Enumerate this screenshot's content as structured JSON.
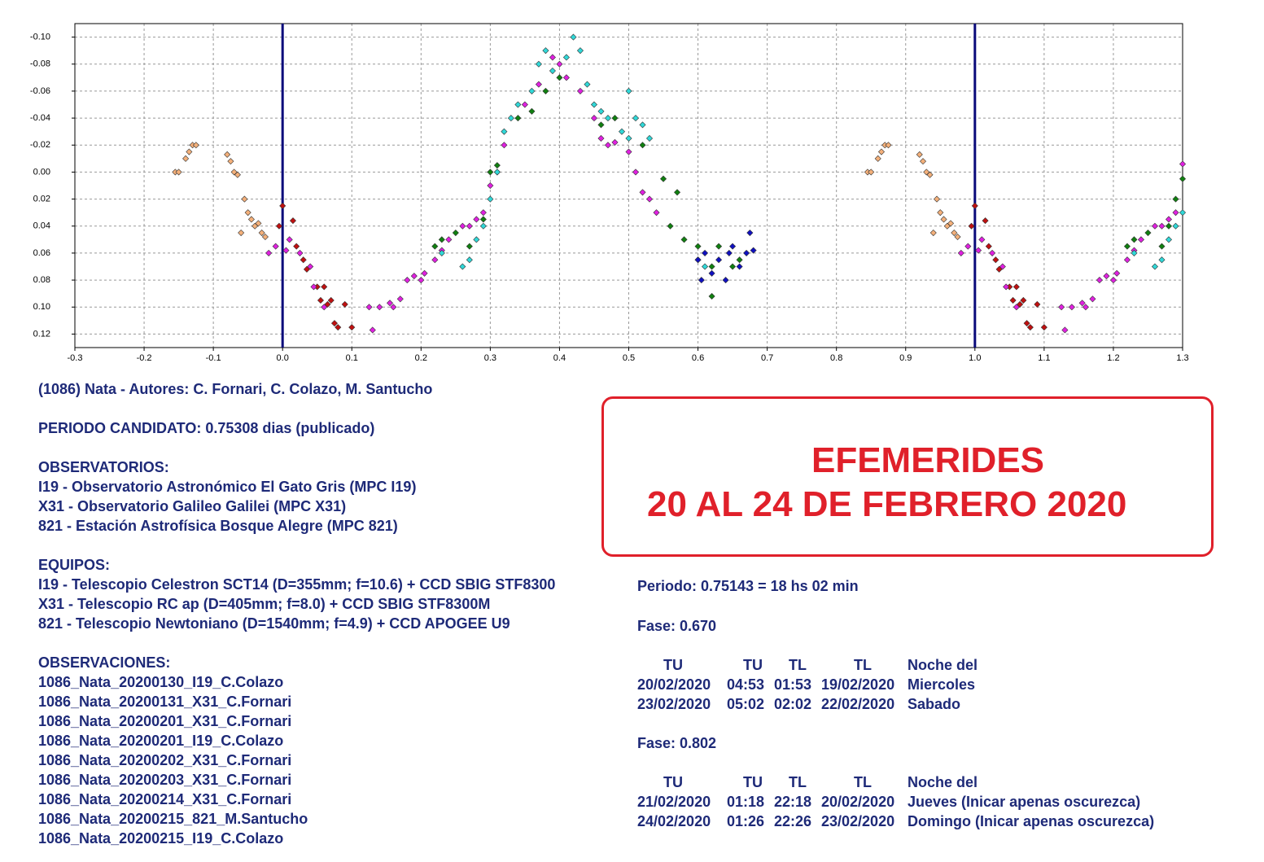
{
  "chart_data": {
    "type": "scatter",
    "xlim": [
      -0.3,
      1.3
    ],
    "ylim": [
      0.13,
      -0.11
    ],
    "xticks": [
      -0.3,
      -0.2,
      -0.1,
      {
        "value": 0,
        "label": "0.0"
      },
      0.1,
      0.2,
      0.3,
      0.4,
      0.5,
      0.6,
      0.7,
      0.8,
      0.9,
      {
        "value": 1,
        "label": "1.0"
      },
      1.1,
      1.2,
      1.3
    ],
    "yticks": [
      {
        "value": -0.1,
        "label": "-0.10"
      },
      {
        "value": -0.08,
        "label": "-0.08"
      },
      {
        "value": -0.06,
        "label": "-0.06"
      },
      {
        "value": -0.04,
        "label": "-0.04"
      },
      {
        "value": -0.02,
        "label": "-0.02"
      },
      {
        "value": 0,
        "label": "0.00"
      },
      {
        "value": 0.02,
        "label": "0.02"
      },
      {
        "value": 0.04,
        "label": "0.04"
      },
      {
        "value": 0.06,
        "label": "0.06"
      },
      {
        "value": 0.08,
        "label": "0.08"
      },
      {
        "value": 0.1,
        "label": "0.10"
      },
      {
        "value": 0.12,
        "label": "0.12"
      }
    ],
    "grid": true,
    "vlines": [
      0,
      1
    ],
    "vline_color": "#0a0a7a",
    "series": [
      {
        "color": "#f4b07a",
        "x": [
          -0.155,
          -0.15,
          -0.14,
          -0.135,
          -0.13,
          -0.125,
          -0.08,
          -0.075,
          -0.07,
          -0.065,
          -0.055,
          -0.05,
          -0.045,
          -0.04,
          -0.035,
          -0.03,
          -0.025,
          -0.06,
          0.845,
          0.85,
          0.86,
          0.865,
          0.87,
          0.875,
          0.92,
          0.925,
          0.93,
          0.935,
          0.945,
          0.95,
          0.955,
          0.96,
          0.965,
          0.97,
          0.975,
          0.94
        ],
        "values": [
          0.0,
          0.0,
          -0.01,
          -0.015,
          -0.02,
          -0.02,
          -0.013,
          -0.008,
          0.0,
          0.002,
          0.02,
          0.03,
          0.035,
          0.04,
          0.038,
          0.045,
          0.048,
          0.045,
          0.0,
          0.0,
          -0.01,
          -0.015,
          -0.02,
          -0.02,
          -0.013,
          -0.008,
          0.0,
          0.002,
          0.02,
          0.03,
          0.035,
          0.04,
          0.038,
          0.045,
          0.048,
          0.045
        ]
      },
      {
        "color": "#c01010",
        "x": [
          0.0,
          0.015,
          0.02,
          0.03,
          0.035,
          0.05,
          0.06,
          0.055,
          0.065,
          0.07,
          0.075,
          0.08,
          0.09,
          0.1,
          -0.005,
          1.0,
          1.015,
          1.02,
          1.03,
          1.035,
          1.05,
          1.06,
          1.055,
          1.065,
          1.07,
          1.075,
          1.08,
          1.09,
          1.1,
          0.995
        ],
        "values": [
          0.025,
          0.036,
          0.055,
          0.065,
          0.072,
          0.085,
          0.085,
          0.095,
          0.098,
          0.095,
          0.112,
          0.115,
          0.098,
          0.115,
          0.04,
          0.025,
          0.036,
          0.055,
          0.065,
          0.072,
          0.085,
          0.085,
          0.095,
          0.098,
          0.095,
          0.112,
          0.115,
          0.098,
          0.115,
          0.04
        ]
      },
      {
        "color": "#e020e0",
        "x": [
          -0.02,
          -0.01,
          0.005,
          0.01,
          0.025,
          0.04,
          0.045,
          0.06,
          0.13,
          0.125,
          0.14,
          0.155,
          0.16,
          0.17,
          0.18,
          0.19,
          0.2,
          0.205,
          0.22,
          0.23,
          0.24,
          0.26,
          0.27,
          0.28,
          0.29,
          0.3,
          0.31,
          0.32,
          0.35,
          0.37,
          0.39,
          0.4,
          0.41,
          0.43,
          0.45,
          0.46,
          0.47,
          0.48,
          0.5,
          0.51,
          0.52,
          0.53,
          0.54,
          0.98,
          0.99,
          1.005,
          1.01,
          1.025,
          1.04,
          1.045,
          1.06,
          1.13,
          1.125,
          1.14,
          1.155,
          1.16,
          1.17,
          1.18,
          1.19,
          1.2,
          1.205,
          1.22,
          1.23,
          1.24,
          1.26,
          1.27,
          1.28,
          1.29,
          1.3
        ],
        "values": [
          0.06,
          0.055,
          0.058,
          0.05,
          0.06,
          0.07,
          0.085,
          0.1,
          0.117,
          0.1,
          0.1,
          0.097,
          0.1,
          0.094,
          0.08,
          0.077,
          0.08,
          0.075,
          0.065,
          0.058,
          0.05,
          0.04,
          0.04,
          0.035,
          0.03,
          0.01,
          0.0,
          -0.02,
          -0.05,
          -0.065,
          -0.085,
          -0.08,
          -0.07,
          -0.06,
          -0.04,
          -0.025,
          -0.02,
          -0.022,
          -0.015,
          0.0,
          0.015,
          0.02,
          0.03,
          0.06,
          0.055,
          0.058,
          0.05,
          0.06,
          0.07,
          0.085,
          0.1,
          0.117,
          0.1,
          0.1,
          0.097,
          0.1,
          0.094,
          0.08,
          0.077,
          0.08,
          0.075,
          0.065,
          0.058,
          0.05,
          0.04,
          0.04,
          0.035,
          0.03,
          -0.006
        ]
      },
      {
        "color": "#108010",
        "x": [
          0.22,
          0.23,
          0.25,
          0.27,
          0.29,
          0.3,
          0.31,
          0.34,
          0.36,
          0.38,
          0.4,
          0.46,
          0.48,
          0.52,
          0.55,
          0.57,
          0.56,
          0.58,
          0.6,
          0.62,
          0.63,
          0.65,
          0.62,
          0.66,
          1.22,
          1.23,
          1.25,
          1.27,
          1.28,
          1.29,
          1.3
        ],
        "values": [
          0.055,
          0.05,
          0.045,
          0.055,
          0.035,
          0.0,
          -0.005,
          -0.04,
          -0.045,
          -0.06,
          -0.07,
          -0.035,
          -0.04,
          -0.02,
          0.005,
          0.015,
          0.04,
          0.05,
          0.055,
          0.07,
          0.055,
          0.07,
          0.092,
          0.065,
          0.055,
          0.05,
          0.045,
          0.055,
          0.04,
          0.02,
          0.005
        ]
      },
      {
        "color": "#30d8d8",
        "x": [
          0.23,
          0.26,
          0.27,
          0.28,
          0.29,
          0.3,
          0.31,
          0.32,
          0.33,
          0.34,
          0.36,
          0.37,
          0.38,
          0.39,
          0.41,
          0.42,
          0.43,
          0.44,
          0.45,
          0.46,
          0.47,
          0.49,
          0.5,
          0.51,
          0.52,
          0.53,
          0.5,
          0.6,
          0.61,
          1.23,
          1.26,
          1.27,
          1.28,
          1.29,
          1.3
        ],
        "values": [
          0.06,
          0.07,
          0.065,
          0.05,
          0.04,
          0.02,
          0.0,
          -0.03,
          -0.04,
          -0.05,
          -0.06,
          -0.08,
          -0.09,
          -0.075,
          -0.085,
          -0.1,
          -0.09,
          -0.065,
          -0.05,
          -0.045,
          -0.04,
          -0.03,
          -0.025,
          -0.04,
          -0.035,
          -0.025,
          -0.06,
          0.065,
          0.07,
          0.06,
          0.07,
          0.065,
          0.05,
          0.04,
          0.03
        ]
      },
      {
        "color": "#1010c0",
        "x": [
          0.6,
          0.605,
          0.61,
          0.62,
          0.63,
          0.64,
          0.645,
          0.65,
          0.66,
          0.67,
          0.68,
          0.675
        ],
        "values": [
          0.065,
          0.08,
          0.06,
          0.075,
          0.065,
          0.08,
          0.06,
          0.055,
          0.07,
          0.06,
          0.058,
          0.045
        ]
      }
    ]
  },
  "info": {
    "title": "(1086) Nata - Autores: C. Fornari, C. Colazo, M. Santucho",
    "period": "PERIODO CANDIDATO: 0.75308 dias (publicado)",
    "observatories_heading": "OBSERVATORIOS:",
    "observatories": [
      "I19 - Observatorio Astronómico El Gato Gris (MPC I19)",
      "X31 - Observatorio Galileo Galilei (MPC X31)",
      "821 - Estación Astrofísica Bosque Alegre (MPC 821)"
    ],
    "equipment_heading": "EQUIPOS:",
    "equipment": [
      "I19 - Telescopio Celestron SCT14 (D=355mm; f=10.6) + CCD SBIG STF8300",
      "X31 - Telescopio RC ap (D=405mm; f=8.0) + CCD SBIG STF8300M",
      "821 - Telescopio Newtoniano (D=1540mm; f=4.9) + CCD APOGEE U9"
    ],
    "observations_heading": "OBSERVACIONES:",
    "observations": [
      "1086_Nata_20200130_I19_C.Colazo",
      "1086_Nata_20200131_X31_C.Fornari",
      "1086_Nata_20200201_X31_C.Fornari",
      "1086_Nata_20200201_I19_C.Colazo",
      "1086_Nata_20200202_X31_C.Fornari",
      "1086_Nata_20200203_X31_C.Fornari",
      "1086_Nata_20200214_X31_C.Fornari",
      "1086_Nata_20200215_821_M.Santucho",
      "1086_Nata_20200215_I19_C.Colazo"
    ]
  },
  "ephemeris": {
    "box_title": "EFEMERIDES",
    "box_subtitle": "20 AL 24 DE FEBRERO 2020",
    "period": "Periodo: 0.75143 = 18 hs 02 min",
    "blocks": [
      {
        "phase": "Fase: 0.670",
        "columns": [
          "TU",
          "TU",
          "TL",
          "TL",
          "Noche del"
        ],
        "rows": [
          [
            "20/02/2020",
            "04:53",
            "01:53",
            "19/02/2020",
            "Miercoles"
          ],
          [
            "23/02/2020",
            "05:02",
            "02:02",
            "22/02/2020",
            "Sabado"
          ]
        ]
      },
      {
        "phase": "Fase: 0.802",
        "columns": [
          "TU",
          "TU",
          "TL",
          "TL",
          "Noche del"
        ],
        "rows": [
          [
            "21/02/2020",
            "01:18",
            "22:18",
            "20/02/2020",
            "Jueves (Inicar apenas oscurezca)"
          ],
          [
            "24/02/2020",
            "01:26",
            "22:26",
            "23/02/2020",
            "Domingo (Inicar apenas oscurezca)"
          ]
        ]
      }
    ]
  }
}
